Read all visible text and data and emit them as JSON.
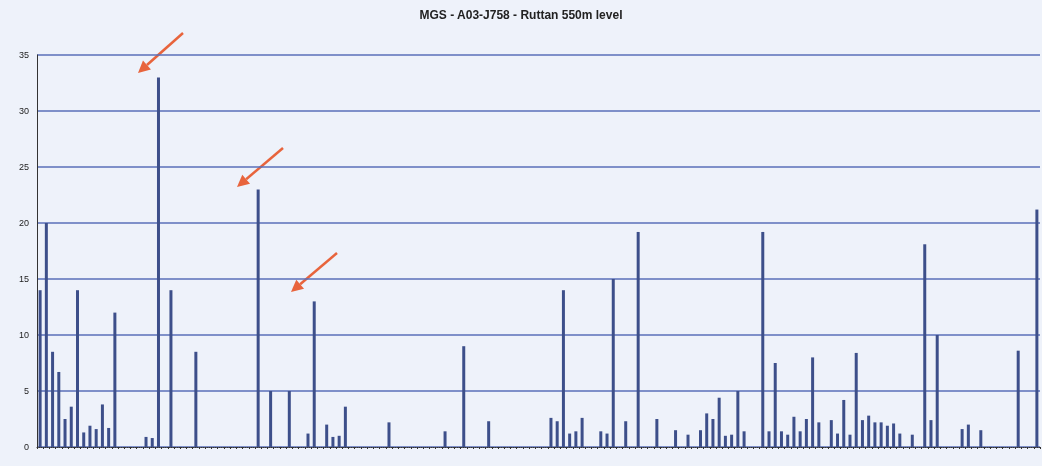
{
  "chart_data": {
    "type": "bar",
    "title": "MGS - A03-J758 - Ruttan 550m level",
    "categories": [
      null,
      null,
      null,
      null,
      null,
      null,
      null,
      null,
      null,
      null,
      null,
      null,
      null,
      null,
      null,
      null,
      null,
      null,
      null,
      null,
      null,
      null,
      null,
      null,
      null,
      null,
      null,
      null,
      null,
      null,
      null,
      null,
      null,
      null,
      null,
      null,
      null,
      null,
      null,
      null,
      null,
      null,
      null,
      null,
      null,
      null,
      null,
      null,
      null,
      null,
      null,
      null,
      null,
      null,
      null,
      null,
      null,
      null,
      null,
      null,
      null,
      null,
      null,
      null,
      null,
      null,
      null,
      null,
      null,
      null,
      null,
      null,
      null,
      null,
      null,
      null,
      null,
      null,
      null,
      null,
      null,
      null,
      null,
      null,
      null,
      null,
      null,
      null,
      null,
      null,
      null,
      null,
      null,
      null,
      null,
      null,
      null,
      null,
      null,
      null,
      null,
      null,
      null,
      null,
      null,
      null,
      null,
      null,
      null,
      null,
      null,
      null,
      null,
      null,
      null,
      null,
      null,
      null,
      null,
      null,
      null,
      null,
      null,
      null,
      null,
      null,
      null,
      null,
      null,
      null,
      null,
      null,
      null,
      null,
      null,
      null,
      null,
      null,
      null,
      null,
      null,
      null,
      null,
      null,
      null,
      null,
      null,
      null,
      null,
      null,
      null,
      null,
      null,
      null,
      null,
      null,
      null,
      null,
      null,
      null,
      null
    ],
    "values": [
      14,
      20,
      8.5,
      6.7,
      2.5,
      3.6,
      14,
      1.3,
      1.9,
      1.6,
      3.8,
      1.7,
      12,
      null,
      null,
      null,
      null,
      0.9,
      0.8,
      33,
      null,
      14,
      null,
      null,
      null,
      8.5,
      null,
      null,
      null,
      null,
      null,
      null,
      null,
      null,
      null,
      23,
      null,
      5,
      null,
      null,
      5,
      null,
      null,
      1.2,
      13,
      null,
      2,
      0.9,
      1,
      3.6,
      null,
      null,
      null,
      null,
      null,
      null,
      2.2,
      null,
      null,
      null,
      null,
      null,
      null,
      null,
      null,
      1.4,
      null,
      null,
      9,
      null,
      null,
      null,
      2.3,
      null,
      null,
      null,
      null,
      null,
      null,
      null,
      null,
      null,
      2.6,
      2.3,
      14,
      1.2,
      1.4,
      2.6,
      null,
      null,
      1.4,
      1.2,
      15,
      null,
      2.3,
      null,
      19.2,
      null,
      null,
      2.5,
      null,
      null,
      1.5,
      null,
      1.1,
      null,
      1.5,
      3,
      2.5,
      4.4,
      1,
      1.1,
      5,
      1.4,
      null,
      null,
      19.2,
      1.4,
      7.5,
      1.4,
      1.1,
      2.7,
      1.4,
      2.5,
      8,
      2.2,
      null,
      2.4,
      1.2,
      4.2,
      1.1,
      8.4,
      2.4,
      2.8,
      2.2,
      2.2,
      1.9,
      2.1,
      1.2,
      null,
      1.1,
      null,
      18.1,
      2.4,
      10,
      null,
      null,
      null,
      1.6,
      2,
      null,
      1.5,
      null,
      null,
      null,
      null,
      null,
      8.6,
      null,
      null,
      21.2
    ],
    "color": "#3d4f8a",
    "ylim": [
      0,
      35
    ],
    "yticks": [
      0,
      5,
      10,
      15,
      20,
      25,
      30,
      35
    ],
    "grid": "y"
  }
}
